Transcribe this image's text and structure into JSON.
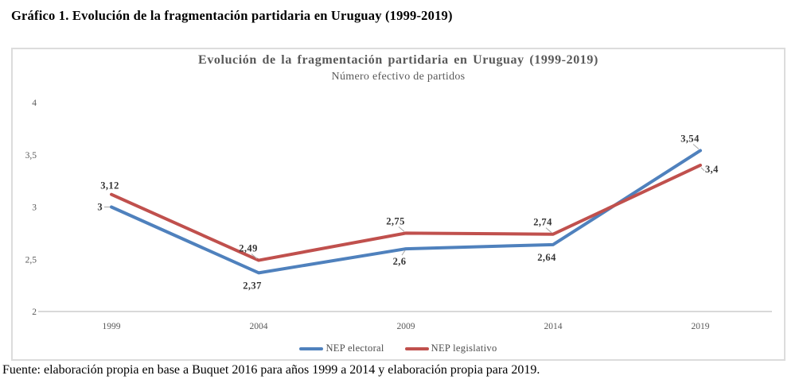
{
  "page": {
    "heading": "Gráfico 1. Evolución de la fragmentación partidaria en Uruguay (1999-2019)",
    "footer": "Fuente: elaboración propia en base a Buquet 2016 para años 1999 a 2014 y elaboración propia para 2019."
  },
  "chart_data": {
    "type": "line",
    "title": "Evolución de la fragmentación partidaria en Uruguay (1999-2019)",
    "subtitle": "Número efectivo de partidos",
    "categories": [
      "1999",
      "2004",
      "2009",
      "2014",
      "2019"
    ],
    "series": [
      {
        "name": "NEP electoral",
        "color": "#4F81BD",
        "values": [
          3,
          2.37,
          2.6,
          2.64,
          3.54
        ],
        "point_labels": [
          {
            "text": "3",
            "pos": "left",
            "leader": true
          },
          {
            "text": "2,37",
            "pos": "below",
            "leader": false
          },
          {
            "text": "2,6",
            "pos": "below",
            "leader": true
          },
          {
            "text": "2,64",
            "pos": "below",
            "leader": false
          },
          {
            "text": "3,54",
            "pos": "above",
            "leader": true
          }
        ]
      },
      {
        "name": "NEP legislativo",
        "color": "#C0504D",
        "values": [
          3.12,
          2.49,
          2.75,
          2.74,
          3.4
        ],
        "point_labels": [
          {
            "text": "3,12",
            "pos": "above",
            "leader": false
          },
          {
            "text": "2,49",
            "pos": "above",
            "leader": true
          },
          {
            "text": "2,75",
            "pos": "above",
            "leader": true
          },
          {
            "text": "2,74",
            "pos": "above",
            "leader": true
          },
          {
            "text": "3,4",
            "pos": "right",
            "leader": true
          }
        ]
      }
    ],
    "ylim": [
      2,
      4
    ],
    "yticks": [
      {
        "value": 4,
        "label": "4"
      },
      {
        "value": 3.5,
        "label": "3,5"
      },
      {
        "value": 3,
        "label": "3"
      },
      {
        "value": 2.5,
        "label": "2,5"
      },
      {
        "value": 2,
        "label": "2"
      }
    ],
    "grid": "bottom-axis-only",
    "legend_position": "bottom-center",
    "axis_color": "#d9d9d9",
    "leader_color": "#a6a6a6",
    "decimal_separator": ","
  }
}
